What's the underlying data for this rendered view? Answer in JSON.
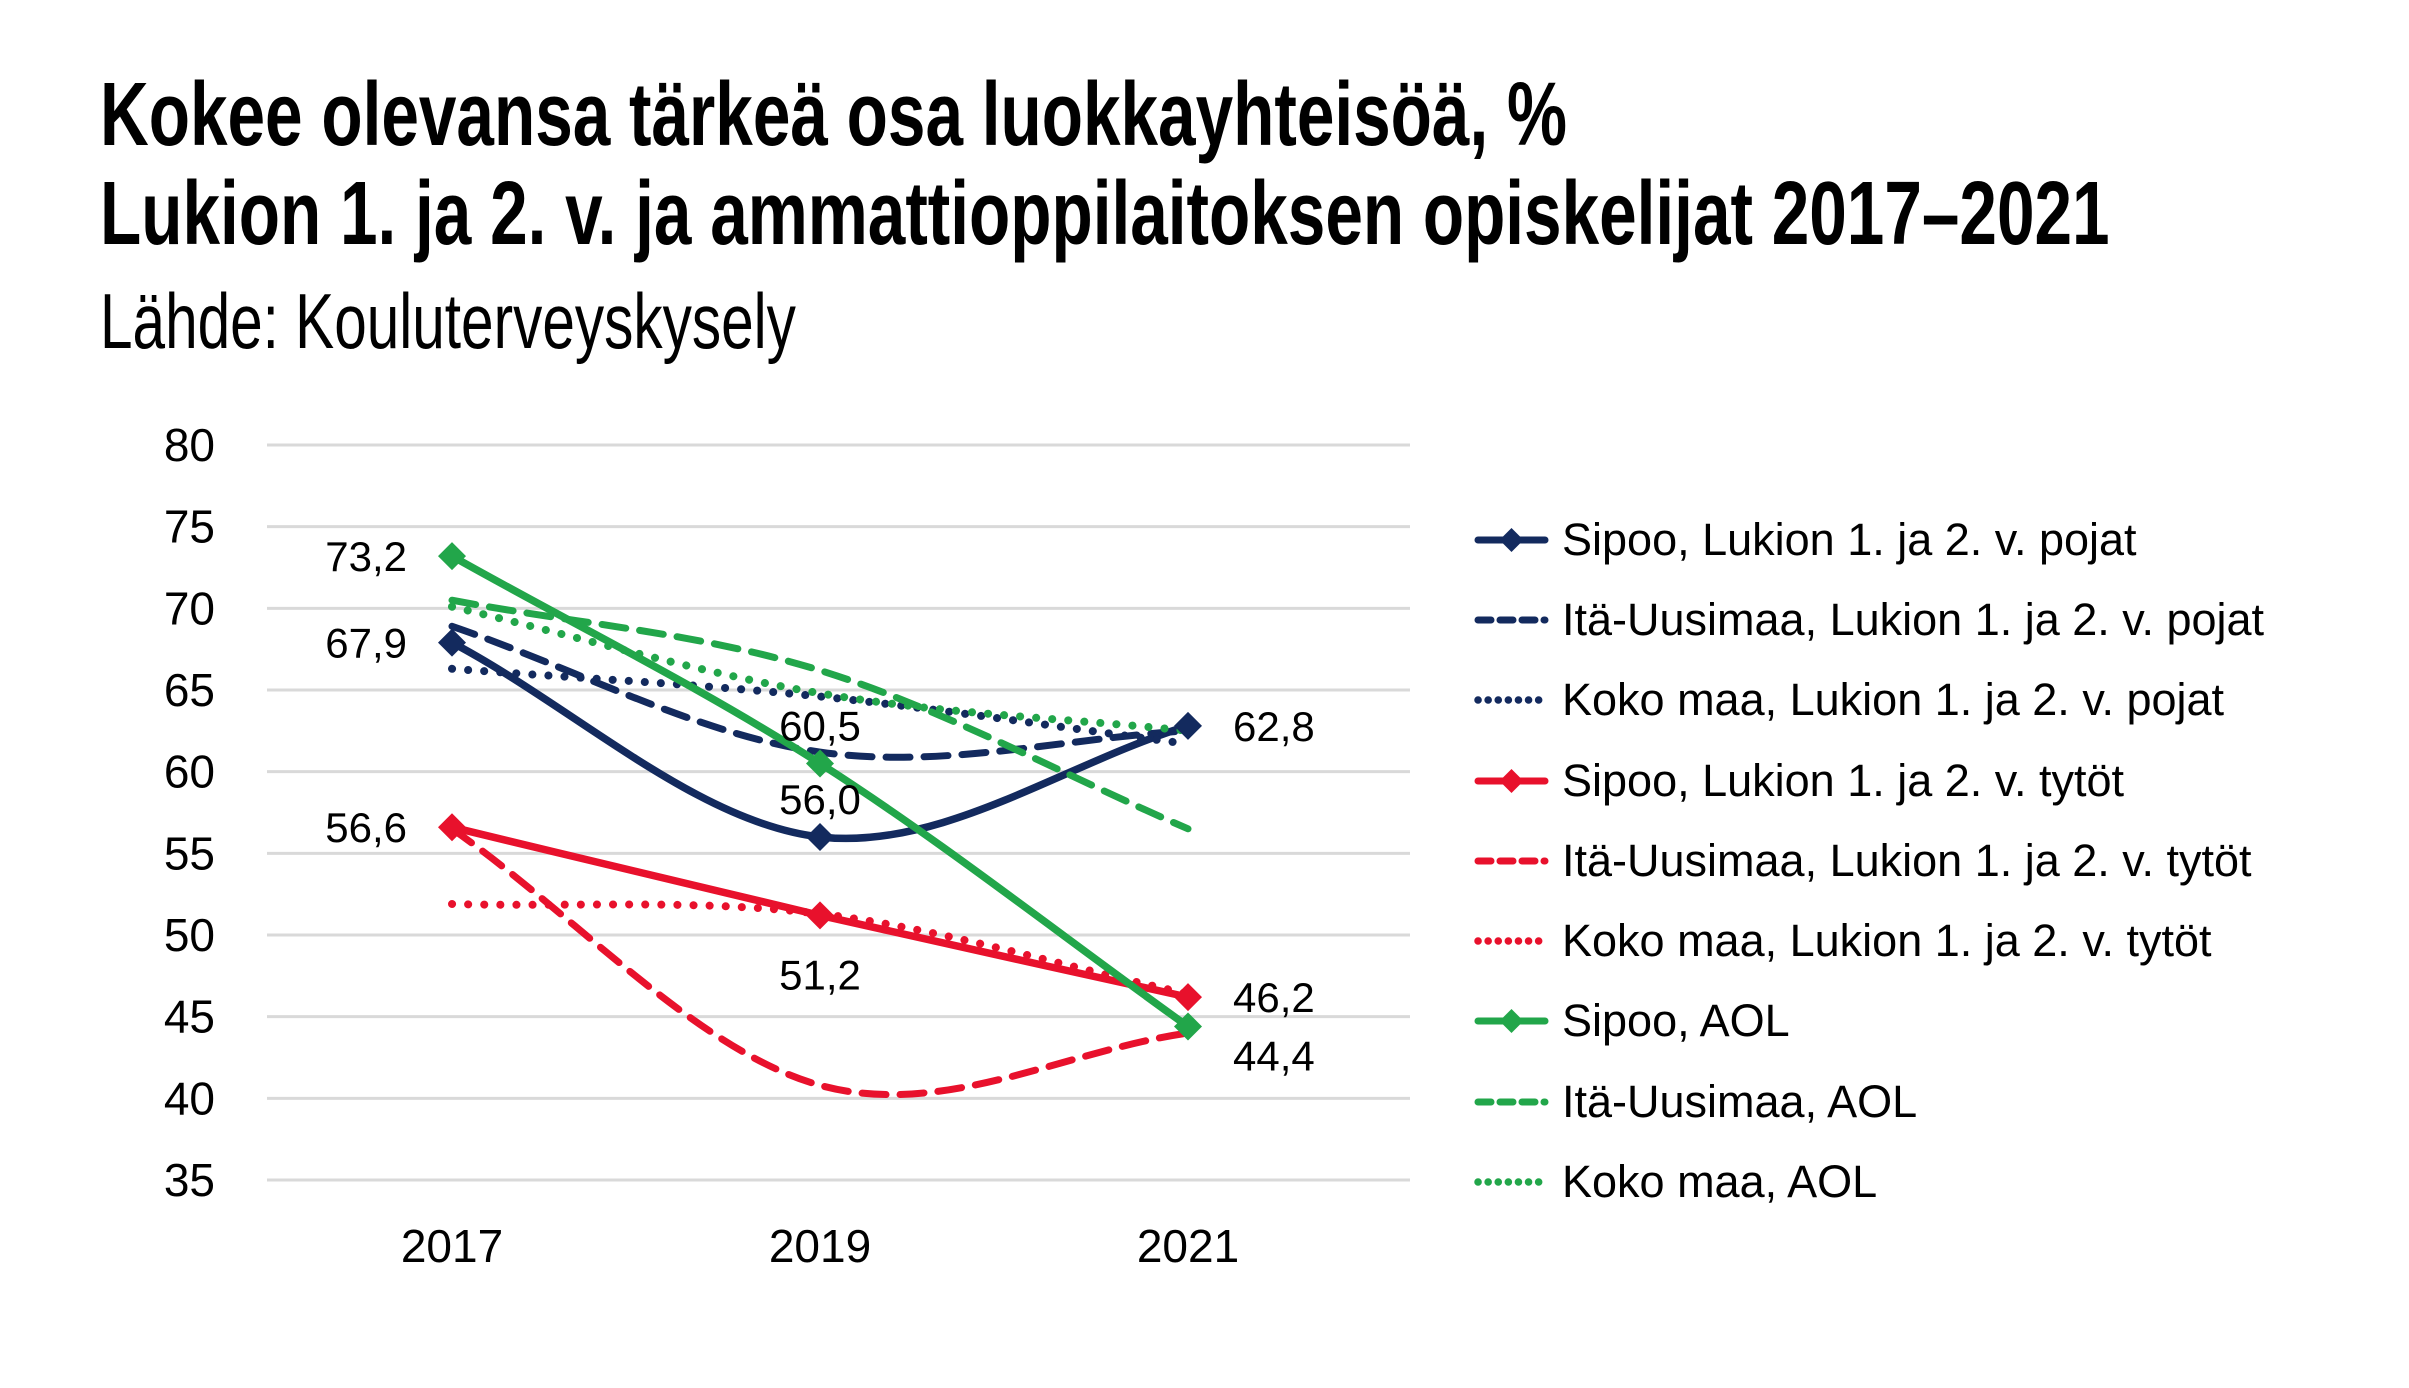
{
  "header": {
    "title_line1": "Kokee olevansa tärkeä osa luokkayhteisöä, %",
    "title_line2": "Lukion 1. ja 2. v. ja ammattioppilaitoksen opiskelijat 2017–2021",
    "source": "Lähde: Kouluterveyskysely"
  },
  "colors": {
    "navy": "#132a5e",
    "red": "#e8112c",
    "green": "#22a64a",
    "grid": "#d9d9d9",
    "text": "#000000"
  },
  "chart_data": {
    "type": "line",
    "title": "Kokee olevansa tärkeä osa luokkayhteisöä, %",
    "subtitle": "Lukion 1. ja 2. v. ja ammattioppilaitoksen opiskelijat 2017–2021",
    "source": "Lähde: Kouluterveyskysely",
    "x_labels": [
      "2017",
      "2019",
      "2021"
    ],
    "x_values": [
      2017,
      2019,
      2021
    ],
    "ylim": [
      35,
      80
    ],
    "y_ticks": [
      80,
      75,
      70,
      65,
      60,
      55,
      50,
      45,
      40,
      35
    ],
    "y_tick_labels": [
      "80",
      "75",
      "70",
      "65",
      "60",
      "55",
      "50",
      "45",
      "40",
      "35"
    ],
    "grid": "horizontal",
    "legend_position": "right",
    "line_smoothing": true,
    "series": [
      {
        "name": "Sipoo, Lukion 1. ja 2. v. pojat",
        "color": "navy",
        "dash": "solid",
        "marker": "diamond",
        "values": [
          67.9,
          56.0,
          62.8
        ],
        "value_labels": [
          "67,9",
          "56,0",
          "62,8"
        ],
        "label_positions": [
          "left",
          "above",
          "right"
        ]
      },
      {
        "name": "Itä-Uusimaa, Lukion 1. ja 2. v. pojat",
        "color": "navy",
        "dash": "dashed",
        "marker": "none",
        "values": [
          68.9,
          61.2,
          62.5
        ],
        "value_labels": [],
        "label_positions": []
      },
      {
        "name": "Koko maa, Lukion 1. ja 2. v. pojat",
        "color": "navy",
        "dash": "dotted",
        "marker": "none",
        "values": [
          66.3,
          64.6,
          61.7
        ],
        "value_labels": [],
        "label_positions": []
      },
      {
        "name": "Sipoo, Lukion 1. ja 2. v. tytöt",
        "color": "red",
        "dash": "solid",
        "marker": "diamond",
        "values": [
          56.6,
          51.2,
          46.2
        ],
        "value_labels": [
          "56,6",
          "51,2",
          "46,2"
        ],
        "label_positions": [
          "left",
          "below",
          "right"
        ]
      },
      {
        "name": "Itä-Uusimaa, Lukion 1. ja 2. v. tytöt",
        "color": "red",
        "dash": "dashed",
        "marker": "none",
        "values": [
          56.5,
          40.8,
          44.0
        ],
        "value_labels": [],
        "label_positions": []
      },
      {
        "name": "Koko maa, Lukion 1. ja 2. v. tytöt",
        "color": "red",
        "dash": "dotted",
        "marker": "none",
        "values": [
          51.9,
          51.3,
          46.4
        ],
        "value_labels": [],
        "label_positions": []
      },
      {
        "name": "Sipoo, AOL",
        "color": "green",
        "dash": "solid",
        "marker": "diamond",
        "values": [
          73.2,
          60.5,
          44.4
        ],
        "value_labels": [
          "73,2",
          "60,5",
          "44,4"
        ],
        "label_positions": [
          "left",
          "above",
          "right-below"
        ]
      },
      {
        "name": "Itä-Uusimaa, AOL",
        "color": "green",
        "dash": "dashed",
        "marker": "none",
        "values": [
          70.5,
          66.2,
          56.5
        ],
        "value_labels": [],
        "label_positions": []
      },
      {
        "name": "Koko maa, AOL",
        "color": "green",
        "dash": "dotted",
        "marker": "none",
        "values": [
          70.1,
          64.8,
          62.5
        ],
        "value_labels": [],
        "label_positions": []
      }
    ]
  }
}
